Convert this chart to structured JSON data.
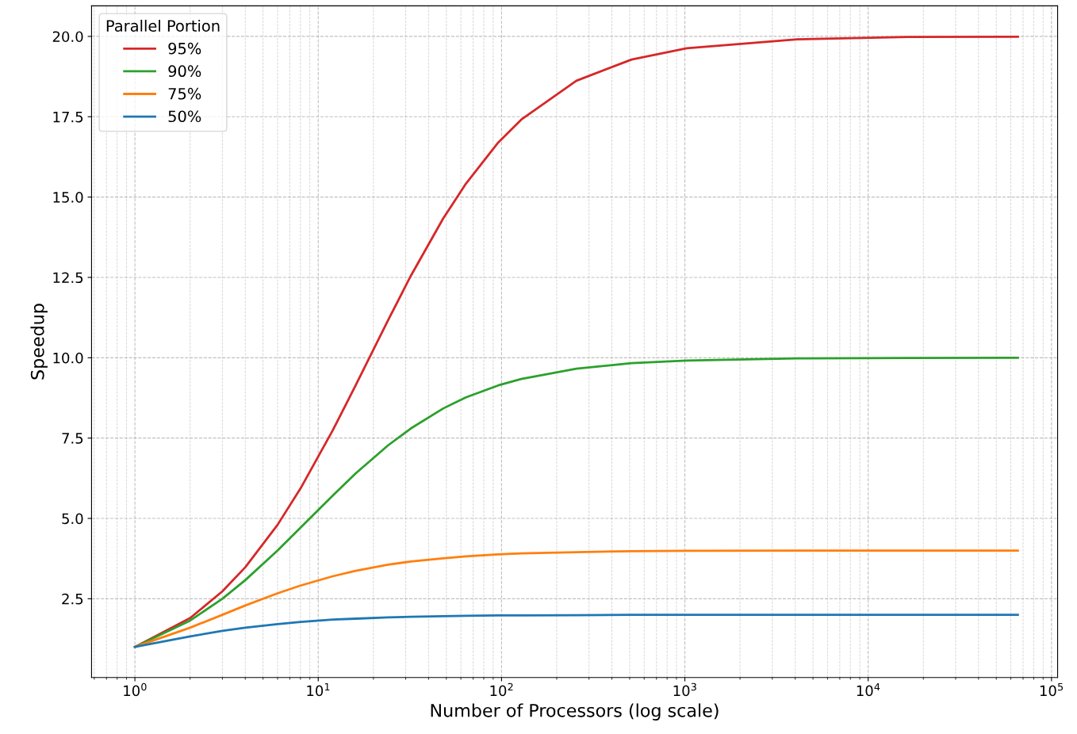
{
  "chart_data": {
    "type": "line",
    "xlabel": "Number of Processors (log scale)",
    "ylabel": "Speedup",
    "legend_title": "Parallel Portion",
    "log": "x",
    "grid": true,
    "legend": "top left",
    "line_style": "solid",
    "marker": "none",
    "x": [
      1,
      2,
      3,
      4,
      6,
      8,
      12,
      16,
      24,
      32,
      48,
      64,
      96,
      128,
      256,
      512,
      1024,
      4096,
      16384,
      65536
    ],
    "series": [
      {
        "name": "95%",
        "color": "#d62728",
        "values": [
          1,
          1.9,
          2.73,
          3.48,
          4.8,
          5.93,
          7.74,
          9.14,
          11.16,
          12.55,
          14.33,
          15.42,
          16.7,
          17.41,
          18.62,
          19.28,
          19.63,
          19.91,
          19.98,
          19.99
        ]
      },
      {
        "name": "90%",
        "color": "#2ca02c",
        "values": [
          1,
          1.82,
          2.5,
          3.08,
          4.0,
          4.71,
          5.71,
          6.4,
          7.27,
          7.8,
          8.42,
          8.77,
          9.14,
          9.34,
          9.66,
          9.83,
          9.91,
          9.98,
          9.99,
          10.0
        ]
      },
      {
        "name": "75%",
        "color": "#ff7f0e",
        "values": [
          1,
          1.6,
          2.0,
          2.29,
          2.67,
          2.91,
          3.2,
          3.37,
          3.56,
          3.66,
          3.76,
          3.82,
          3.88,
          3.91,
          3.95,
          3.98,
          3.99,
          4.0,
          4.0,
          4.0
        ]
      },
      {
        "name": "50%",
        "color": "#1f77b4",
        "values": [
          1,
          1.33,
          1.5,
          1.6,
          1.71,
          1.78,
          1.85,
          1.88,
          1.92,
          1.94,
          1.96,
          1.97,
          1.98,
          1.98,
          1.99,
          2.0,
          2.0,
          2.0,
          2.0,
          2.0
        ]
      }
    ],
    "xlim": [
      0.58,
      108000
    ],
    "xticks": [
      {
        "value": 1,
        "label": "10$^{0}$"
      },
      {
        "value": 10,
        "label": "10$^{1}$"
      },
      {
        "value": 100,
        "label": "10$^{2}$"
      },
      {
        "value": 1000,
        "label": "10$^{3}$"
      },
      {
        "value": 10000,
        "label": "10$^{4}$"
      },
      {
        "value": 100000,
        "label": "10$^{5}$"
      }
    ],
    "ylim": [
      0.05,
      20.95
    ],
    "yticks": [
      2.5,
      {
        "value": 5,
        "label": "5.0"
      },
      7.5,
      {
        "value": 10,
        "label": "10.0"
      },
      12.5,
      {
        "value": 15,
        "label": "15.0"
      },
      17.5,
      {
        "value": 20,
        "label": "20.0"
      }
    ]
  }
}
